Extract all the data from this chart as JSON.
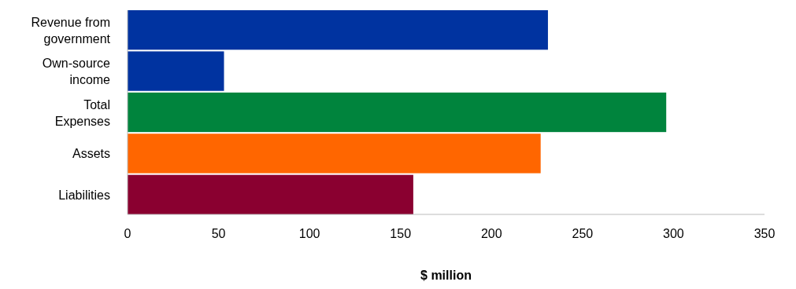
{
  "chart_data": {
    "type": "bar",
    "orientation": "horizontal",
    "categories": [
      "Revenue from government",
      "Own-source income",
      "Total Expenses",
      "Assets",
      "Liabilities"
    ],
    "values": [
      231,
      53,
      296,
      227,
      157
    ],
    "colors": [
      "#0033a0",
      "#0033a0",
      "#00843d",
      "#ff6600",
      "#8a0030"
    ],
    "xlim": [
      0,
      350
    ],
    "xticks": [
      0,
      50,
      100,
      150,
      200,
      250,
      300,
      350
    ],
    "xlabel": "$ million"
  }
}
